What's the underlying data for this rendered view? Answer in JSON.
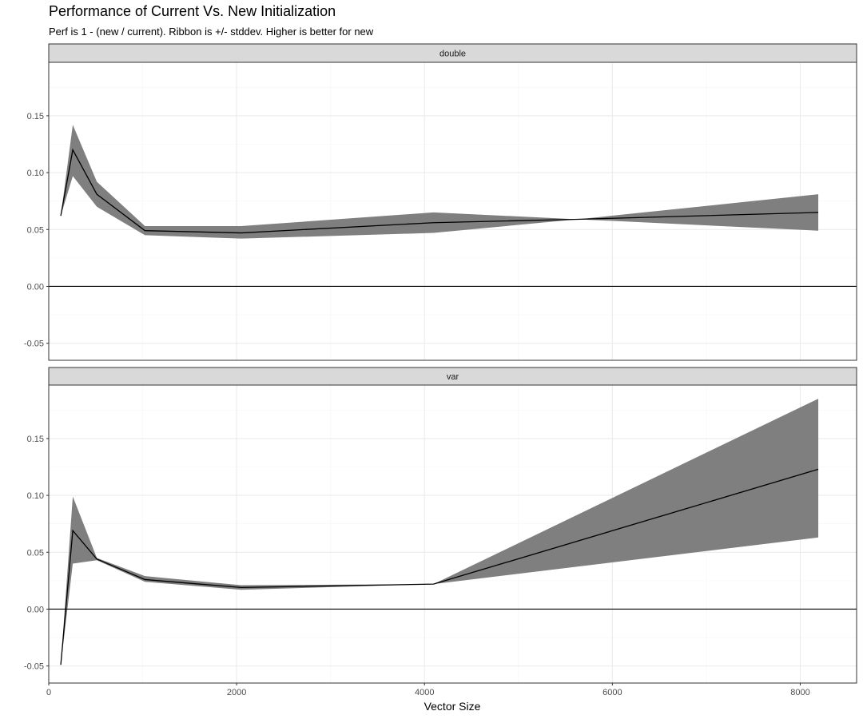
{
  "chart_data": {
    "type": "line",
    "title": "Performance of Current Vs. New Initialization",
    "subtitle": "Perf is 1 - (new / current). Ribbon is +/- stddev. Higher is better for new",
    "xlabel": "Vector Size",
    "ylabel": "",
    "xlim": [
      0,
      8600
    ],
    "ylim": [
      -0.065,
      0.197
    ],
    "x_ticks": [
      0,
      2000,
      4000,
      6000,
      8000
    ],
    "x_tick_labels": [
      "0",
      "2000",
      "4000",
      "6000",
      "8000"
    ],
    "y_ticks": [
      -0.05,
      0,
      0.05,
      0.1,
      0.15
    ],
    "y_tick_labels": [
      "-0.05",
      "0.00",
      "0.05",
      "0.10",
      "0.15"
    ],
    "grid": true,
    "reference_line_y": 0,
    "colors": {
      "line": "#000000",
      "ribbon": "#7f7f7f",
      "strip_fill": "#d9d9d9",
      "strip_border": "#333333",
      "panel_border": "#333333",
      "grid_major": "#ebebeb",
      "grid_minor": "#f5f5f5"
    },
    "panels": [
      {
        "name": "double",
        "x": [
          128,
          256,
          512,
          1024,
          2048,
          4096,
          5632,
          8192
        ],
        "y": [
          0.062,
          0.12,
          0.081,
          0.049,
          0.047,
          0.056,
          0.059,
          0.065
        ],
        "lower": [
          0.062,
          0.097,
          0.07,
          0.045,
          0.042,
          0.047,
          0.059,
          0.049
        ],
        "upper": [
          0.062,
          0.142,
          0.092,
          0.053,
          0.053,
          0.065,
          0.059,
          0.081
        ]
      },
      {
        "name": "var",
        "x": [
          128,
          256,
          512,
          1024,
          2048,
          4096,
          8192
        ],
        "y": [
          -0.049,
          0.069,
          0.044,
          0.026,
          0.019,
          0.022,
          0.123
        ],
        "lower": [
          -0.049,
          0.04,
          0.043,
          0.024,
          0.017,
          0.022,
          0.063
        ],
        "upper": [
          -0.049,
          0.099,
          0.045,
          0.029,
          0.021,
          0.022,
          0.185
        ]
      }
    ]
  }
}
